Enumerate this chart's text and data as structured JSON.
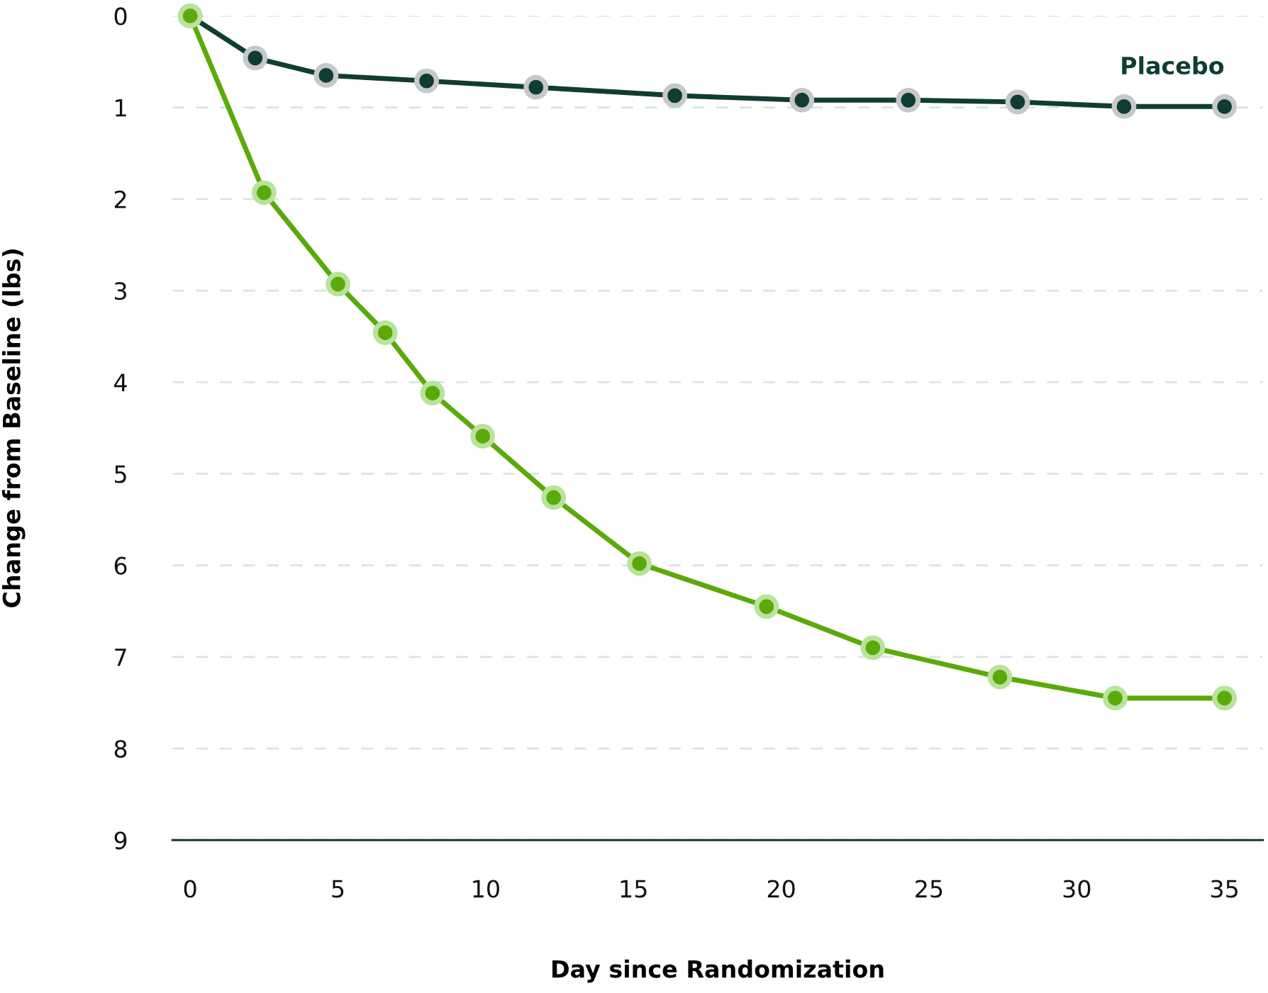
{
  "chart_data": {
    "type": "line",
    "xlabel": "Day since Randomization",
    "ylabel": "Change from Baseline (lbs)",
    "xlim": [
      -0.6,
      36.3
    ],
    "xticks": [
      0,
      5,
      10,
      15,
      20,
      25,
      30,
      35
    ],
    "ylim": [
      9,
      0
    ],
    "yticks": [
      0,
      1,
      2,
      3,
      4,
      5,
      6,
      7,
      8,
      9
    ],
    "grid": "y",
    "marker": "circle",
    "line_style": "solid",
    "legend": false,
    "series": [
      {
        "name": "Placebo",
        "color": "#0f3d34",
        "x": [
          0,
          2.2,
          4.6,
          8.0,
          11.7,
          16.4,
          20.7,
          24.3,
          28.0,
          31.6,
          35
        ],
        "values": [
          0,
          0.46,
          0.65,
          0.71,
          0.78,
          0.87,
          0.92,
          0.92,
          0.94,
          0.99,
          0.99
        ]
      },
      {
        "color": "#5aaa0a",
        "x": [
          0,
          2.5,
          5.0,
          6.6,
          8.2,
          9.9,
          12.3,
          15.2,
          19.5,
          23.1,
          27.4,
          31.3,
          35
        ],
        "values": [
          0,
          1.93,
          2.93,
          3.46,
          4.12,
          4.59,
          5.26,
          5.98,
          6.45,
          6.9,
          7.22,
          7.45,
          7.45
        ]
      }
    ]
  }
}
